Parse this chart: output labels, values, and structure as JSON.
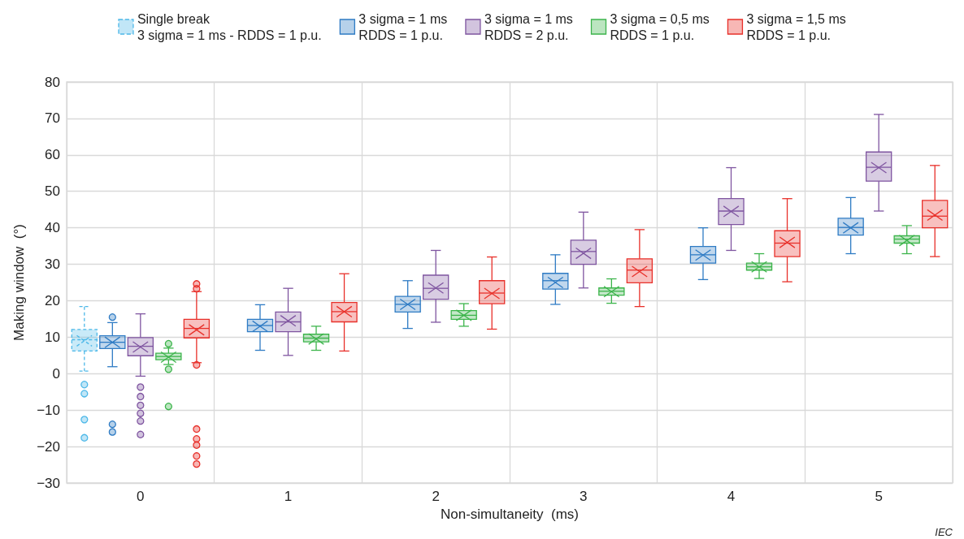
{
  "chart_data": {
    "type": "box",
    "xlabel": "Non-simultaneity  (ms)",
    "ylabel": "Making window  (°)",
    "categories": [
      "0",
      "1",
      "2",
      "3",
      "4",
      "5"
    ],
    "ylim": [
      -30,
      80
    ],
    "yticks": [
      {
        "value": -30,
        "label": "−30"
      },
      {
        "value": -20,
        "label": "−20"
      },
      {
        "value": -10,
        "label": "−10"
      },
      0,
      10,
      20,
      30,
      40,
      50,
      60,
      70,
      80
    ],
    "grid": true,
    "legend": "top",
    "annotations": [
      "IEC"
    ],
    "series": [
      {
        "name": "Single break\n3 sigma = 1 ms - RDDS = 1 p.u.",
        "color": "#4db8e8",
        "line_style": "dashed",
        "boxes": [
          {
            "low": 0.7,
            "q1": 6.2,
            "median": 9.3,
            "q3": 12.1,
            "high": 18.4,
            "mean": 9,
            "outliers": [
              -3,
              -5.5,
              -12.6,
              -17.6
            ]
          },
          null,
          null,
          null,
          null,
          null
        ]
      },
      {
        "name": "3 sigma = 1 ms\nRDDS = 1 p.u.",
        "color": "#2e7bc4",
        "boxes": [
          {
            "low": 1.9,
            "q1": 6.9,
            "median": 8.6,
            "q3": 10.4,
            "high": 14,
            "mean": 8.6,
            "outliers": [
              15.5,
              -13.9,
              -16
            ]
          },
          {
            "low": 6.4,
            "q1": 11.5,
            "median": 13.2,
            "q3": 14.9,
            "high": 18.9,
            "mean": 13
          },
          {
            "low": 12.4,
            "q1": 16.9,
            "median": 19,
            "q3": 21.2,
            "high": 25.5,
            "mean": 19
          },
          {
            "low": 19,
            "q1": 23.2,
            "median": 25.5,
            "q3": 27.5,
            "high": 32.6,
            "mean": 25
          },
          {
            "low": 25.8,
            "q1": 30.3,
            "median": 32.6,
            "q3": 34.9,
            "high": 40,
            "mean": 32.5
          },
          {
            "low": 32.9,
            "q1": 38,
            "median": 40.1,
            "q3": 42.6,
            "high": 48.3,
            "mean": 40
          }
        ]
      },
      {
        "name": "3 sigma = 1 ms\nRDDS = 2 p.u.",
        "color": "#7f55a0",
        "boxes": [
          {
            "low": -0.7,
            "q1": 4.9,
            "median": 7.5,
            "q3": 9.9,
            "high": 16.4,
            "mean": 7.3,
            "outliers": [
              -3.7,
              -6.3,
              -8.7,
              -10.9,
              -13,
              -16.7
            ]
          },
          {
            "low": 5,
            "q1": 11.5,
            "median": 14.2,
            "q3": 16.9,
            "high": 23.4,
            "mean": 14.5
          },
          {
            "low": 14.1,
            "q1": 20.4,
            "median": 23.4,
            "q3": 27,
            "high": 33.8,
            "mean": 23.5
          },
          {
            "low": 23.5,
            "q1": 30,
            "median": 33.5,
            "q3": 36.6,
            "high": 44.3,
            "mean": 33
          },
          {
            "low": 33.8,
            "q1": 40.9,
            "median": 44.6,
            "q3": 48,
            "high": 56.5,
            "mean": 44.5
          },
          {
            "low": 44.6,
            "q1": 52.8,
            "median": 56.6,
            "q3": 60.8,
            "high": 71.1,
            "mean": 56.5
          }
        ]
      },
      {
        "name": "3 sigma = 0,5 ms\nRDDS = 1 p.u.",
        "color": "#3cb44b",
        "boxes": [
          {
            "low": 2.5,
            "q1": 3.8,
            "median": 4.7,
            "q3": 5.6,
            "high": 7,
            "mean": 4.5,
            "outliers": [
              8.2,
              1.2,
              -9
            ]
          },
          {
            "low": 6.4,
            "q1": 8.7,
            "median": 9.7,
            "q3": 10.8,
            "high": 13,
            "mean": 9.5
          },
          {
            "low": 13,
            "q1": 14.9,
            "median": 16,
            "q3": 17.3,
            "high": 19.2,
            "mean": 16
          },
          {
            "low": 19.3,
            "q1": 21.5,
            "median": 22.6,
            "q3": 23.5,
            "high": 26,
            "mean": 22.5
          },
          {
            "low": 26.1,
            "q1": 28.4,
            "median": 29.3,
            "q3": 30.3,
            "high": 32.9,
            "mean": 29.3
          },
          {
            "low": 32.9,
            "q1": 35.8,
            "median": 36.9,
            "q3": 37.8,
            "high": 40.6,
            "mean": 36.5
          }
        ]
      },
      {
        "name": "3 sigma = 1,5 ms\nRDDS = 1 p.u.",
        "color": "#e8302a",
        "boxes": [
          {
            "low": 3,
            "q1": 9.8,
            "median": 12.4,
            "q3": 14.9,
            "high": 22.5,
            "mean": 12,
            "outliers": [
              23.3,
              24.6,
              2.4,
              -15.2,
              -17.9,
              -19.6,
              -22.6,
              -24.8
            ]
          },
          {
            "low": 6.2,
            "q1": 14.2,
            "median": 17,
            "q3": 19.5,
            "high": 27.4,
            "mean": 17
          },
          {
            "low": 12.2,
            "q1": 19.2,
            "median": 22.1,
            "q3": 25.5,
            "high": 32,
            "mean": 22
          },
          {
            "low": 18.4,
            "q1": 24.9,
            "median": 28.4,
            "q3": 31.5,
            "high": 39.5,
            "mean": 28
          },
          {
            "low": 25.2,
            "q1": 32.1,
            "median": 35.8,
            "q3": 39.2,
            "high": 48,
            "mean": 36
          },
          {
            "low": 32.1,
            "q1": 40,
            "median": 43.2,
            "q3": 47.5,
            "high": 57.1,
            "mean": 43.5
          }
        ]
      }
    ]
  }
}
